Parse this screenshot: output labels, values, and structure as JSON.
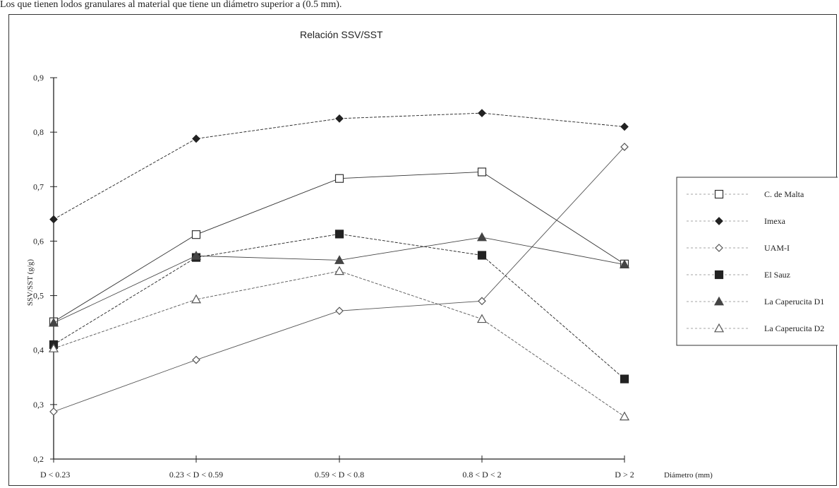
{
  "page": {
    "top_caption": "Los que tienen lodos granulares al material que tiene un diámetro superior a (0.5 mm)."
  },
  "chart_data": {
    "type": "line",
    "title": "Relación SSV/SST",
    "xlabel": "Diámetro (mm)",
    "ylabel": "SSV/SST (g/g)",
    "ylim": [
      0.2,
      0.9
    ],
    "yticks": [
      "0,2",
      "0,3",
      "0,4",
      "0,5",
      "0,6",
      "0,7",
      "0,8",
      "0,9"
    ],
    "categories": [
      "D < 0.23",
      "0.23 < D < 0.59",
      "0.59 < D < 0.8",
      "0.8 < D < 2",
      "D > 2"
    ],
    "grid": false,
    "legend_position": "right",
    "series": [
      {
        "name": "C. de Malta",
        "marker": "square-open",
        "color": "#333333",
        "values": [
          0.452,
          0.612,
          0.715,
          0.727,
          0.558
        ]
      },
      {
        "name": "Imexa",
        "marker": "diamond-filled",
        "color": "#222222",
        "values": [
          0.64,
          0.788,
          0.825,
          0.835,
          0.81
        ]
      },
      {
        "name": "UAM-I",
        "marker": "diamond-open",
        "color": "#555555",
        "values": [
          0.287,
          0.382,
          0.472,
          0.49,
          0.773
        ]
      },
      {
        "name": "El Sauz",
        "marker": "square-filled",
        "color": "#222222",
        "values": [
          0.41,
          0.57,
          0.613,
          0.574,
          0.347
        ]
      },
      {
        "name": "La Caperucita D1",
        "marker": "triangle-filled",
        "color": "#444444",
        "values": [
          0.45,
          0.573,
          0.565,
          0.607,
          0.557
        ]
      },
      {
        "name": "La Caperucita D2",
        "marker": "triangle-open",
        "color": "#555555",
        "values": [
          0.403,
          0.493,
          0.545,
          0.457,
          0.278
        ]
      }
    ]
  }
}
